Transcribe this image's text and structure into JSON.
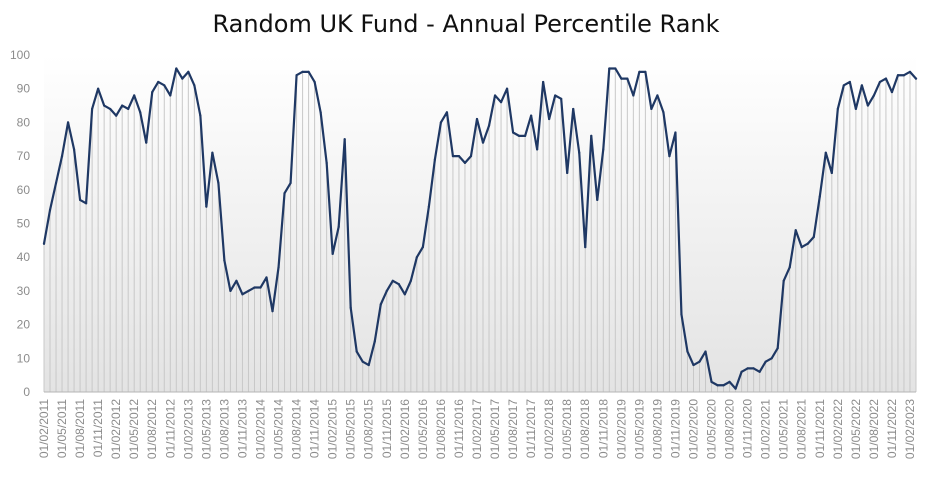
{
  "chart_data": {
    "type": "line",
    "title": "Random UK Fund - Annual Percentile Rank",
    "xlabel": "",
    "ylabel": "",
    "ylim": [
      0,
      100
    ],
    "yticks": [
      0,
      10,
      20,
      30,
      40,
      50,
      60,
      70,
      80,
      90,
      100
    ],
    "grid": "vertical lines at each monthly point; no horizontal gridlines",
    "legend": "none",
    "line_color": "#1f3864",
    "grid_color": "#c8c8c8",
    "xtick_labels": [
      "01/02/2011",
      "01/05/2011",
      "01/08/2011",
      "01/11/2011",
      "01/02/2012",
      "01/05/2012",
      "01/08/2012",
      "01/11/2012",
      "01/02/2013",
      "01/05/2013",
      "01/08/2013",
      "01/11/2013",
      "01/02/2014",
      "01/05/2014",
      "01/08/2014",
      "01/11/2014",
      "01/02/2015",
      "01/05/2015",
      "01/08/2015",
      "01/11/2015",
      "01/02/2016",
      "01/05/2016",
      "01/08/2016",
      "01/11/2016",
      "01/02/2017",
      "01/05/2017",
      "01/08/2017",
      "01/11/2017",
      "01/02/2018",
      "01/05/2018",
      "01/08/2018",
      "01/11/2018",
      "01/02/2019",
      "01/05/2019",
      "01/08/2019",
      "01/11/2019",
      "01/02/2020",
      "01/05/2020",
      "01/08/2020",
      "01/11/2020",
      "01/02/2021",
      "01/05/2021",
      "01/08/2021",
      "01/11/2021",
      "01/02/2022",
      "01/05/2022",
      "01/08/2022",
      "01/11/2022",
      "01/02/2023"
    ],
    "series": [
      {
        "values": [
          44,
          54,
          62,
          70,
          80,
          72,
          57,
          56,
          84,
          90,
          85,
          84,
          82,
          85,
          84,
          88,
          83,
          74,
          89,
          92,
          91,
          88,
          96,
          93,
          95,
          91,
          82,
          55,
          71,
          62,
          39,
          30,
          33,
          29,
          30,
          31,
          31,
          34,
          24,
          37,
          59,
          62,
          94,
          95,
          95,
          92,
          83,
          68,
          41,
          49,
          75,
          25,
          12,
          9,
          8,
          15,
          26,
          30,
          33,
          32,
          29,
          33,
          40,
          43,
          55,
          69,
          80,
          83,
          70,
          70,
          68,
          70,
          81,
          74,
          79,
          88,
          86,
          90,
          77,
          76,
          76,
          82,
          72,
          92,
          81,
          88,
          87,
          65,
          84,
          71,
          43,
          76,
          57,
          72,
          96,
          96,
          93,
          93,
          88,
          95,
          95,
          84,
          88,
          83,
          70,
          77,
          23,
          12,
          8,
          9,
          12,
          3,
          2,
          2,
          3,
          1,
          6,
          7,
          7,
          6,
          9,
          10,
          13,
          33,
          37,
          48,
          43,
          44,
          46,
          58,
          71,
          65,
          84,
          91,
          92,
          84,
          91,
          85,
          88,
          92,
          93,
          89,
          94,
          94,
          95,
          93
        ]
      }
    ]
  }
}
